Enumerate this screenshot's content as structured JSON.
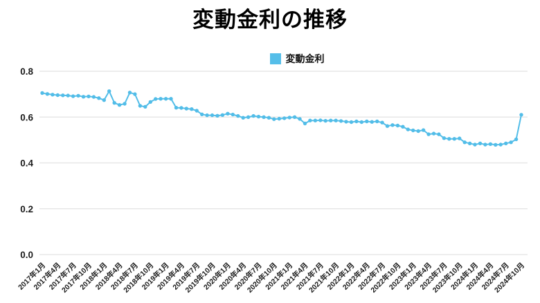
{
  "title": "変動金利の推移",
  "legend": {
    "label": "変動金利"
  },
  "colors": {
    "line": "#52bde8",
    "swatch": "#55bee9",
    "grid": "#e2e2e2",
    "tick_text": "#1c1c1c",
    "title_text": "#000000",
    "background": "#ffffff"
  },
  "chart_data": {
    "type": "line",
    "title": "変動金利の推移",
    "legend_entries": [
      "変動金利"
    ],
    "legend_position": "top",
    "grid": true,
    "x_frequency": "monthly",
    "x_start_month": "2017年1月",
    "x_end_month": "2024年10月",
    "x_tick_interval_months": 3,
    "x_tick_labels": [
      "2017年1月",
      "2017年4月",
      "2017年7月",
      "2017年10月",
      "2018年1月",
      "2018年4月",
      "2018年7月",
      "2018年10月",
      "2019年1月",
      "2019年4月",
      "2019年7月",
      "2019年10月",
      "2020年1月",
      "2020年4月",
      "2020年7月",
      "2020年10月",
      "2021年1月",
      "2021年4月",
      "2021年7月",
      "2021年10月",
      "2022年1月",
      "2022年4月",
      "2022年7月",
      "2022年10月",
      "2023年1月",
      "2023年4月",
      "2023年7月",
      "2023年10月",
      "2024年1月",
      "2024年4月",
      "2024年7月",
      "2024年10月"
    ],
    "ylim": [
      0,
      0.8
    ],
    "y_ticks": [
      0.0,
      0.2,
      0.4,
      0.6,
      0.8
    ],
    "y_tick_labels": [
      "0.0",
      "0.2",
      "0.4",
      "0.6",
      "0.8"
    ],
    "series": [
      {
        "name": "変動金利",
        "color": "#52bde8",
        "values": [
          0.705,
          0.701,
          0.698,
          0.696,
          0.695,
          0.694,
          0.691,
          0.693,
          0.689,
          0.69,
          0.688,
          0.683,
          0.674,
          0.713,
          0.662,
          0.653,
          0.658,
          0.707,
          0.7,
          0.649,
          0.645,
          0.666,
          0.679,
          0.68,
          0.68,
          0.68,
          0.641,
          0.64,
          0.637,
          0.635,
          0.628,
          0.612,
          0.608,
          0.608,
          0.606,
          0.609,
          0.615,
          0.611,
          0.605,
          0.597,
          0.6,
          0.605,
          0.602,
          0.6,
          0.597,
          0.591,
          0.593,
          0.595,
          0.598,
          0.6,
          0.592,
          0.572,
          0.585,
          0.585,
          0.586,
          0.584,
          0.585,
          0.585,
          0.583,
          0.58,
          0.578,
          0.581,
          0.578,
          0.581,
          0.579,
          0.581,
          0.576,
          0.561,
          0.565,
          0.563,
          0.558,
          0.546,
          0.542,
          0.539,
          0.543,
          0.525,
          0.528,
          0.525,
          0.508,
          0.505,
          0.505,
          0.507,
          0.49,
          0.485,
          0.48,
          0.485,
          0.48,
          0.482,
          0.479,
          0.48,
          0.485,
          0.49,
          0.503,
          0.61
        ]
      }
    ]
  }
}
